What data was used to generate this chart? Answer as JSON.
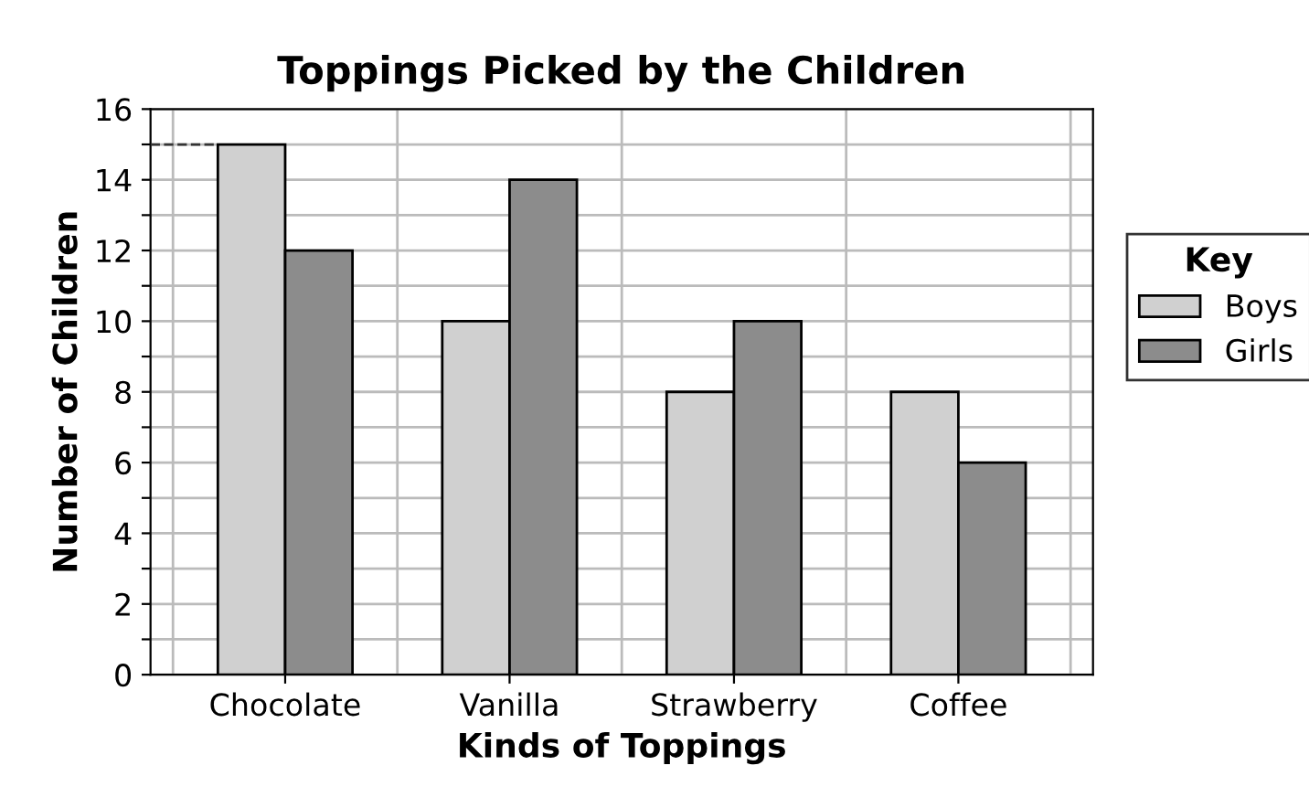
{
  "chart_data": {
    "type": "bar",
    "title": "Toppings Picked by the Children",
    "xlabel": "Kinds of Toppings",
    "ylabel": "Number of Children",
    "legend_title": "Key",
    "categories": [
      "Chocolate",
      "Vanilla",
      "Strawberry",
      "Coffee"
    ],
    "series": [
      {
        "name": "Boys",
        "color": "#d0d0d0",
        "values": [
          15,
          10,
          8,
          8
        ]
      },
      {
        "name": "Girls",
        "color": "#8c8c8c",
        "values": [
          12,
          14,
          10,
          6
        ]
      }
    ],
    "ylim": [
      0,
      16
    ],
    "yticks": [
      0,
      {
        "value": 1,
        "label": null
      },
      2,
      {
        "value": 3,
        "label": null
      },
      4,
      {
        "value": 5,
        "label": null
      },
      6,
      {
        "value": 7,
        "label": null
      },
      8,
      {
        "value": 9,
        "label": null
      },
      10,
      {
        "value": 11,
        "label": null
      },
      12,
      {
        "value": 13,
        "label": null
      },
      14,
      {
        "value": 15,
        "label": null
      },
      16
    ],
    "grid": true,
    "legend": "right"
  }
}
